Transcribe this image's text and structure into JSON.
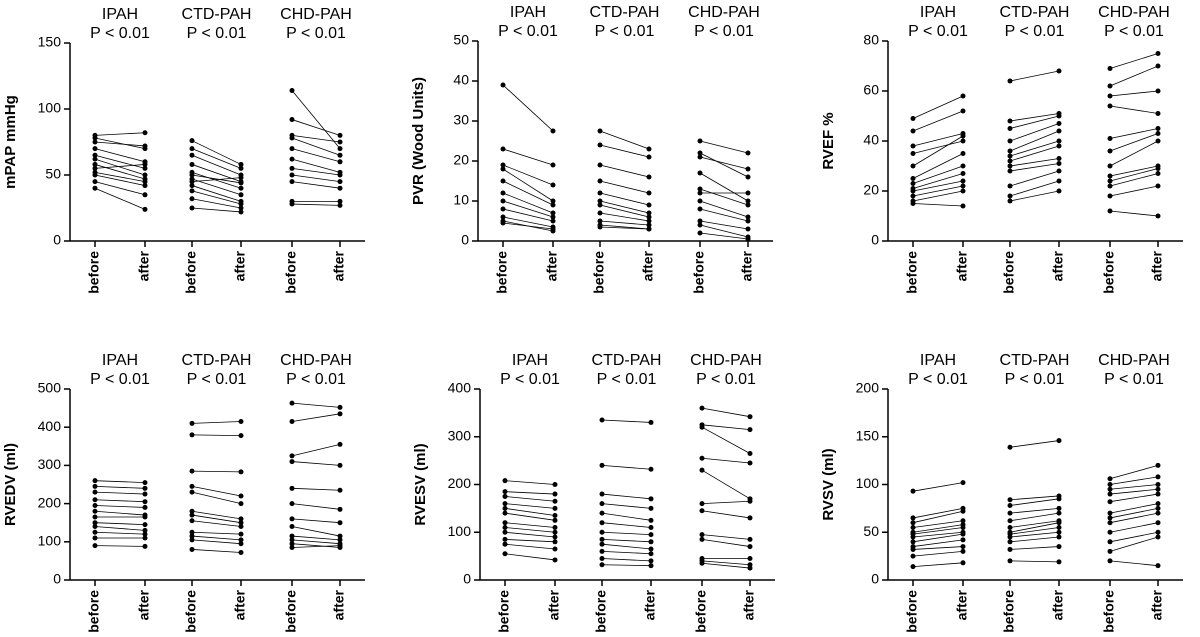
{
  "chart_data": [
    {
      "type": "paired",
      "ylabel": "mPAP mmHg",
      "categories": [
        "before",
        "after"
      ],
      "ylim": [
        0,
        150
      ],
      "yticks": [
        0,
        50,
        100,
        150
      ],
      "series": [
        {
          "name": "IPAH",
          "annotation": "P < 0.01",
          "before": [
            80,
            78,
            75,
            70,
            65,
            62,
            58,
            55,
            52,
            50,
            45,
            40
          ],
          "after": [
            82,
            70,
            72,
            60,
            55,
            50,
            47,
            58,
            45,
            42,
            35,
            24
          ]
        },
        {
          "name": "CTD-PAH",
          "annotation": "P < 0.01",
          "before": [
            76,
            70,
            65,
            58,
            52,
            50,
            47,
            45,
            42,
            38,
            32,
            25
          ],
          "after": [
            58,
            55,
            50,
            45,
            40,
            44,
            35,
            48,
            30,
            28,
            25,
            22
          ]
        },
        {
          "name": "CHD-PAH",
          "annotation": "P < 0.01",
          "before": [
            114,
            92,
            80,
            78,
            70,
            62,
            55,
            50,
            45,
            30,
            28
          ],
          "after": [
            70,
            80,
            75,
            65,
            60,
            52,
            50,
            45,
            40,
            30,
            27
          ]
        }
      ]
    },
    {
      "type": "paired",
      "ylabel": "PVR (Wood Units)",
      "categories": [
        "before",
        "after"
      ],
      "ylim": [
        0,
        50
      ],
      "yticks": [
        0,
        10,
        20,
        30,
        40,
        50
      ],
      "series": [
        {
          "name": "IPAH",
          "annotation": "P < 0.01",
          "before": [
            39,
            23,
            19,
            18,
            15,
            12,
            10,
            8,
            6,
            5,
            4.5
          ],
          "after": [
            27.5,
            19,
            14,
            10,
            9,
            7,
            6,
            5,
            3.5,
            2.5,
            3
          ]
        },
        {
          "name": "CTD-PAH",
          "annotation": "P < 0.01",
          "before": [
            27.5,
            24,
            19,
            15,
            12,
            10,
            9,
            7,
            5,
            4,
            3.5
          ],
          "after": [
            23,
            21,
            16,
            12,
            9,
            7,
            6,
            5,
            4,
            3,
            3
          ]
        },
        {
          "name": "CHD-PAH",
          "annotation": "P < 0.01",
          "before": [
            25,
            22,
            21,
            17,
            13,
            12,
            10,
            8,
            5,
            4,
            2
          ],
          "after": [
            22,
            16,
            18,
            10,
            9,
            12,
            6,
            5,
            3,
            1,
            0.5
          ]
        }
      ]
    },
    {
      "type": "paired",
      "ylabel": "RVEF %",
      "categories": [
        "before",
        "after"
      ],
      "ylim": [
        0,
        80
      ],
      "yticks": [
        0,
        20,
        40,
        60,
        80
      ],
      "series": [
        {
          "name": "IPAH",
          "annotation": "P < 0.01",
          "before": [
            49,
            44,
            38,
            35,
            30,
            25,
            23,
            21,
            20,
            18,
            16,
            15
          ],
          "after": [
            58,
            52,
            43,
            40,
            42,
            35,
            30,
            27,
            24,
            22,
            20,
            14
          ]
        },
        {
          "name": "CTD-PAH",
          "annotation": "P < 0.01",
          "before": [
            64,
            48,
            45,
            40,
            36,
            34,
            32,
            30,
            28,
            22,
            18,
            16
          ],
          "after": [
            68,
            51,
            50,
            47,
            44,
            40,
            38,
            33,
            31,
            28,
            24,
            20
          ]
        },
        {
          "name": "CHD-PAH",
          "annotation": "P < 0.01",
          "before": [
            69,
            62,
            58,
            54,
            41,
            36,
            30,
            26,
            24,
            22,
            18,
            12
          ],
          "after": [
            75,
            70,
            60,
            51,
            45,
            43,
            40,
            30,
            29,
            27,
            22,
            10
          ]
        }
      ]
    },
    {
      "type": "paired",
      "ylabel": "RVEDV (ml)",
      "categories": [
        "before",
        "after"
      ],
      "ylim": [
        0,
        500
      ],
      "yticks": [
        0,
        100,
        200,
        300,
        400,
        500
      ],
      "series": [
        {
          "name": "IPAH",
          "annotation": "P < 0.01",
          "before": [
            260,
            245,
            230,
            210,
            195,
            180,
            165,
            150,
            140,
            125,
            110,
            90
          ],
          "after": [
            255,
            240,
            225,
            205,
            190,
            170,
            165,
            145,
            130,
            120,
            110,
            88
          ]
        },
        {
          "name": "CTD-PAH",
          "annotation": "P < 0.01",
          "before": [
            410,
            380,
            285,
            245,
            230,
            180,
            170,
            155,
            125,
            115,
            105,
            80
          ],
          "after": [
            415,
            378,
            283,
            220,
            200,
            160,
            150,
            140,
            120,
            105,
            95,
            72
          ]
        },
        {
          "name": "CHD-PAH",
          "annotation": "P < 0.01",
          "before": [
            463,
            415,
            325,
            310,
            240,
            200,
            160,
            140,
            115,
            105,
            95,
            85
          ],
          "after": [
            452,
            435,
            355,
            300,
            235,
            185,
            150,
            115,
            105,
            95,
            85,
            90
          ]
        }
      ]
    },
    {
      "type": "paired",
      "ylabel": "RVESV (ml)",
      "categories": [
        "before",
        "after"
      ],
      "ylim": [
        0,
        400
      ],
      "yticks": [
        0,
        100,
        200,
        300,
        400
      ],
      "series": [
        {
          "name": "IPAH",
          "annotation": "P < 0.01",
          "before": [
            208,
            185,
            175,
            160,
            150,
            140,
            120,
            110,
            100,
            85,
            75,
            55
          ],
          "after": [
            200,
            180,
            165,
            150,
            135,
            125,
            110,
            100,
            90,
            80,
            65,
            42
          ]
        },
        {
          "name": "CTD-PAH",
          "annotation": "P < 0.01",
          "before": [
            335,
            240,
            180,
            160,
            140,
            120,
            100,
            85,
            75,
            60,
            45,
            32
          ],
          "after": [
            330,
            232,
            170,
            150,
            125,
            110,
            95,
            80,
            65,
            55,
            40,
            30
          ]
        },
        {
          "name": "CHD-PAH",
          "annotation": "P < 0.01",
          "before": [
            360,
            325,
            320,
            255,
            230,
            160,
            145,
            95,
            85,
            45,
            40,
            35
          ],
          "after": [
            342,
            315,
            265,
            245,
            170,
            165,
            130,
            85,
            70,
            45,
            32,
            25
          ]
        }
      ]
    },
    {
      "type": "paired",
      "ylabel": "RVSV (ml)",
      "categories": [
        "before",
        "after"
      ],
      "ylim": [
        0,
        200
      ],
      "yticks": [
        0,
        50,
        100,
        150,
        200
      ],
      "series": [
        {
          "name": "IPAH",
          "annotation": "P < 0.01",
          "before": [
            93,
            65,
            60,
            55,
            50,
            48,
            45,
            40,
            35,
            32,
            25,
            14
          ],
          "after": [
            102,
            75,
            72,
            62,
            58,
            55,
            50,
            48,
            42,
            35,
            30,
            18
          ]
        },
        {
          "name": "CTD-PAH",
          "annotation": "P < 0.01",
          "before": [
            139,
            84,
            78,
            70,
            62,
            55,
            50,
            48,
            45,
            40,
            32,
            20
          ],
          "after": [
            146,
            88,
            85,
            75,
            70,
            62,
            60,
            55,
            50,
            45,
            35,
            19
          ]
        },
        {
          "name": "CHD-PAH",
          "annotation": "P < 0.01",
          "before": [
            106,
            100,
            95,
            90,
            82,
            70,
            65,
            60,
            50,
            40,
            30,
            20
          ],
          "after": [
            120,
            108,
            100,
            95,
            90,
            80,
            75,
            70,
            60,
            50,
            45,
            15
          ]
        }
      ]
    }
  ]
}
